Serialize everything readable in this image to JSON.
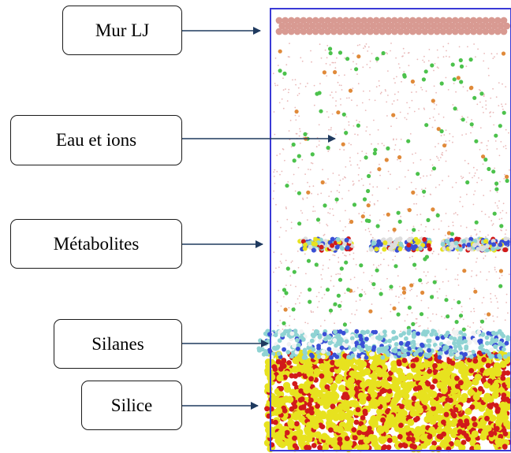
{
  "labels": {
    "lj_wall": "Mur LJ",
    "water_ions": "Eau et ions",
    "metabolites": "Métabolites",
    "silanes": "Silanes",
    "silica": "Silice"
  },
  "colors": {
    "box_border": "#3a3ad6",
    "arrow": "#1f3a5f",
    "lj_wall_atom": "#d89a92",
    "ion_green": "#4cc24c",
    "ion_orange": "#e08a3a",
    "water_dot": "#e9b8b8",
    "silica_yellow": "#e7e21f",
    "silica_red": "#d11a1a",
    "silane_cyan": "#8fd3d3",
    "metabolite_blue": "#3a4fd6"
  }
}
